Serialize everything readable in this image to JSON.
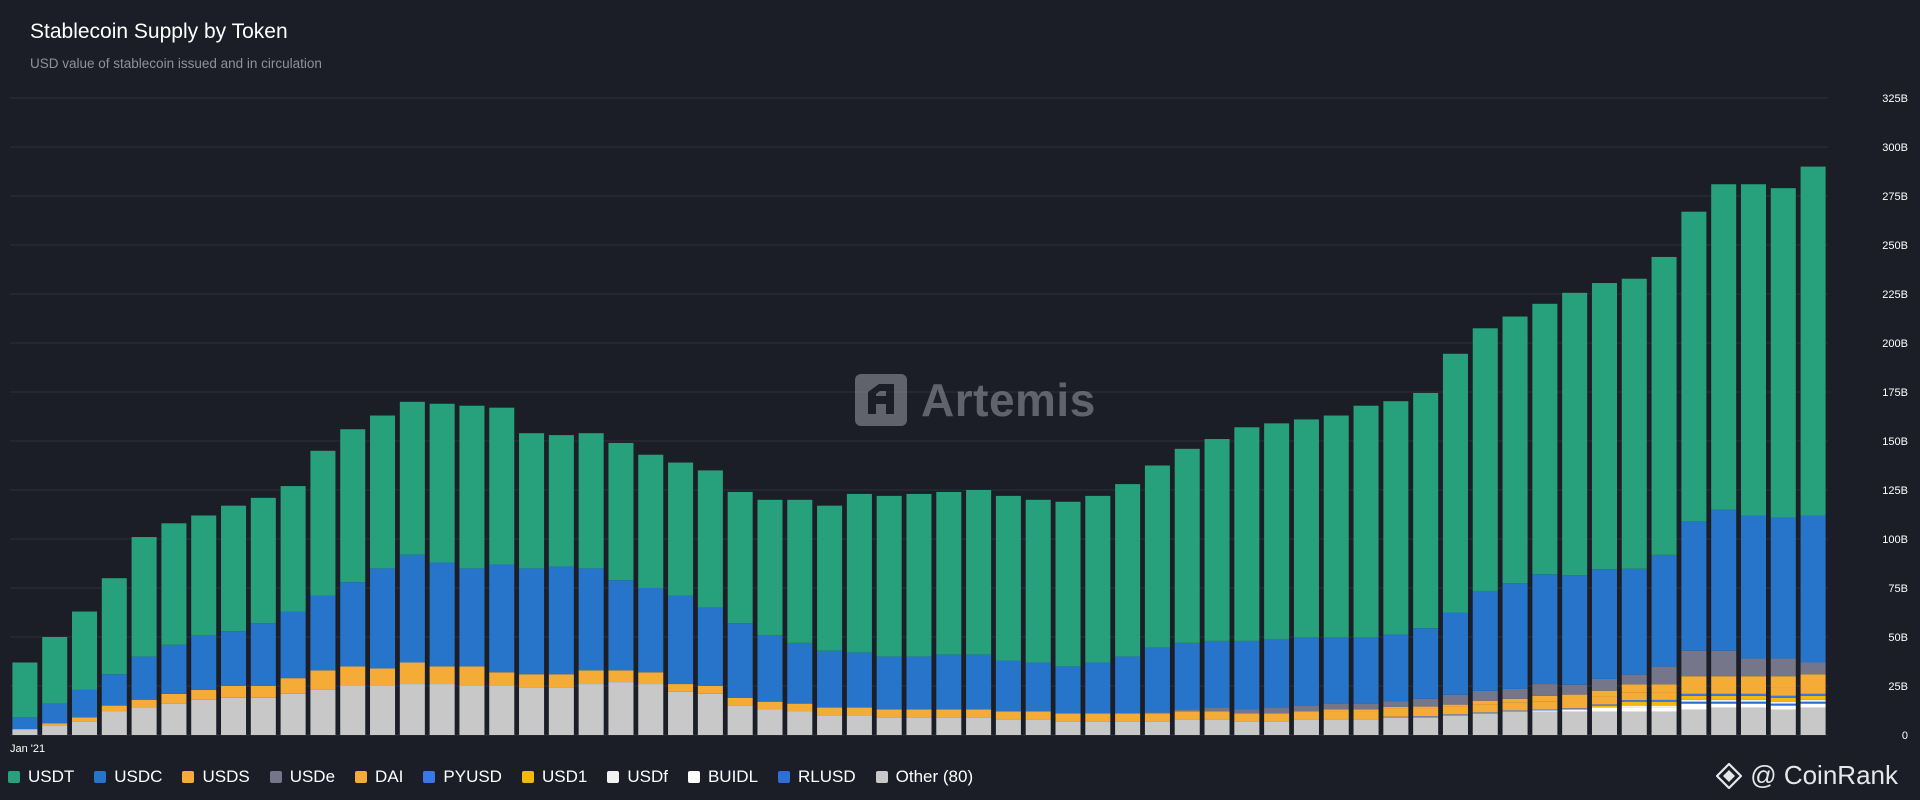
{
  "header": {
    "title": "Stablecoin Supply by Token",
    "subtitle": "USD value of stablecoin issued and in circulation"
  },
  "watermark": {
    "text": "Artemis",
    "icon": "artemis-logo-icon"
  },
  "brand": {
    "text": "@ CoinRank",
    "icon": "coinrank-logo-icon"
  },
  "chart_data": {
    "type": "bar",
    "stacked": true,
    "title": "Stablecoin Supply by Token",
    "subtitle": "USD value of stablecoin issued and in circulation",
    "xlabel": "",
    "ylabel": "",
    "x_tick_labels": [
      "Jan '21"
    ],
    "y_ticks": [
      "0",
      "25B",
      "50B",
      "75B",
      "100B",
      "125B",
      "150B",
      "175B",
      "200B",
      "225B",
      "250B",
      "275B",
      "300B",
      "325B"
    ],
    "ylim": [
      0,
      325
    ],
    "unit": "B USD",
    "grid": true,
    "legend_position": "bottom-left",
    "series": [
      {
        "name": "Other (80)",
        "color": "#c8c8c8",
        "values": [
          3,
          5,
          7,
          12,
          14,
          16,
          18,
          19,
          19,
          21,
          23,
          25,
          25,
          26,
          26,
          25,
          25,
          24,
          24,
          26,
          27,
          26,
          22,
          21,
          15,
          13,
          12,
          10,
          10,
          9,
          9,
          9,
          9,
          8,
          8,
          7,
          7,
          7,
          7,
          8,
          8,
          7,
          7,
          8,
          8,
          8,
          9,
          9,
          10,
          11,
          12,
          12,
          12,
          12,
          12,
          12,
          13,
          14,
          14,
          13,
          14
        ]
      },
      {
        "name": "BUIDL",
        "color": "#ffffff",
        "values": [
          0,
          0,
          0,
          0,
          0,
          0,
          0,
          0,
          0,
          0,
          0,
          0,
          0,
          0,
          0,
          0,
          0,
          0,
          0,
          0,
          0,
          0,
          0,
          0,
          0,
          0,
          0,
          0,
          0,
          0,
          0,
          0,
          0,
          0,
          0,
          0,
          0,
          0,
          0,
          0,
          0,
          0,
          0,
          0,
          0,
          0,
          0,
          0,
          0,
          0,
          0,
          0.5,
          1,
          2,
          2,
          2,
          3,
          2,
          2,
          2,
          2
        ]
      },
      {
        "name": "RLUSD",
        "color": "#2f6ed8",
        "values": [
          0,
          0,
          0,
          0,
          0,
          0,
          0,
          0,
          0,
          0,
          0,
          0,
          0,
          0,
          0,
          0,
          0,
          0,
          0,
          0,
          0,
          0,
          0,
          0,
          0,
          0,
          0,
          0,
          0,
          0,
          0,
          0,
          0,
          0,
          0,
          0,
          0,
          0,
          0,
          0,
          0,
          0,
          0,
          0,
          0,
          0,
          0,
          0,
          0,
          0,
          0,
          0,
          0,
          0,
          0,
          0,
          1,
          1,
          1,
          1,
          1
        ]
      },
      {
        "name": "USDf",
        "color": "#f2f2f2",
        "values": [
          0,
          0,
          0,
          0,
          0,
          0,
          0,
          0,
          0,
          0,
          0,
          0,
          0,
          0,
          0,
          0,
          0,
          0,
          0,
          0,
          0,
          0,
          0,
          0,
          0,
          0,
          0,
          0,
          0,
          0,
          0,
          0,
          0,
          0,
          0,
          0,
          0,
          0,
          0,
          0,
          0,
          0,
          0,
          0,
          0,
          0,
          0,
          0,
          0,
          0,
          0,
          0,
          0,
          0,
          1,
          1,
          1,
          1,
          1,
          1,
          1
        ]
      },
      {
        "name": "USD1",
        "color": "#f0b90b",
        "values": [
          0,
          0,
          0,
          0,
          0,
          0,
          0,
          0,
          0,
          0,
          0,
          0,
          0,
          0,
          0,
          0,
          0,
          0,
          0,
          0,
          0,
          0,
          0,
          0,
          0,
          0,
          0,
          0,
          0,
          0,
          0,
          0,
          0,
          0,
          0,
          0,
          0,
          0,
          0,
          0,
          0,
          0,
          0,
          0,
          0,
          0,
          0,
          0,
          0,
          0,
          0,
          0,
          0,
          1,
          2,
          2,
          2,
          2,
          2,
          2,
          2
        ]
      },
      {
        "name": "PYUSD",
        "color": "#3b78e7",
        "values": [
          0,
          0,
          0,
          0,
          0,
          0,
          0,
          0,
          0,
          0,
          0,
          0,
          0,
          0,
          0,
          0,
          0,
          0,
          0,
          0,
          0,
          0,
          0,
          0,
          0,
          0,
          0,
          0,
          0,
          0,
          0,
          0,
          0,
          0,
          0,
          0,
          0,
          0,
          0,
          0,
          0,
          0,
          0,
          0,
          0,
          0,
          0.3,
          0.5,
          0.5,
          0.5,
          0.5,
          0.5,
          0.6,
          0.6,
          0.8,
          0.9,
          1,
          1,
          1,
          1,
          1
        ]
      },
      {
        "name": "DAI",
        "color": "#f5ac37",
        "values": [
          0,
          1,
          2,
          3,
          4,
          5,
          5,
          6,
          6,
          8,
          10,
          10,
          9,
          11,
          9,
          10,
          7,
          7,
          7,
          7,
          6,
          6,
          4,
          4,
          4,
          4,
          4,
          4,
          4,
          4,
          4,
          4,
          4,
          4,
          4,
          4,
          4,
          4,
          4,
          4,
          4,
          4,
          4,
          4,
          4,
          4,
          4,
          4,
          4,
          4,
          4,
          4,
          4,
          4,
          4,
          4,
          4,
          4,
          4,
          4,
          4
        ]
      },
      {
        "name": "USDS",
        "color": "#f5ac37",
        "values": [
          0,
          0,
          0,
          0,
          0,
          0,
          0,
          0,
          0,
          0,
          0,
          0,
          0,
          0,
          0,
          0,
          0,
          0,
          0,
          0,
          0,
          0,
          0,
          0,
          0,
          0,
          0,
          0,
          0,
          0,
          0,
          0,
          0,
          0,
          0,
          0,
          0,
          0,
          0,
          0,
          0,
          0,
          0,
          0,
          1,
          1,
          1,
          1,
          1,
          2,
          2,
          3,
          3,
          3,
          4,
          4,
          5,
          5,
          5,
          6,
          6
        ]
      },
      {
        "name": "USDe",
        "color": "#75768a",
        "values": [
          0,
          0,
          0,
          0,
          0,
          0,
          0,
          0,
          0,
          0,
          0,
          0,
          0,
          0,
          0,
          0,
          0,
          0,
          0,
          0,
          0,
          0,
          0,
          0,
          0,
          0,
          0,
          0,
          0,
          0,
          0,
          0,
          0,
          0,
          0,
          0,
          0,
          0,
          0.5,
          1,
          2,
          2,
          3,
          3,
          3,
          3,
          3,
          4,
          5,
          5,
          5,
          6,
          5,
          6,
          5,
          9,
          13,
          13,
          9,
          9,
          6
        ]
      },
      {
        "name": "USDC",
        "color": "#2775ca",
        "values": [
          6,
          10,
          14,
          16,
          22,
          25,
          28,
          28,
          32,
          34,
          38,
          43,
          51,
          55,
          53,
          50,
          55,
          54,
          55,
          52,
          46,
          43,
          45,
          40,
          38,
          34,
          31,
          29,
          28,
          27,
          27,
          28,
          28,
          26,
          25,
          24,
          26,
          29,
          33,
          34,
          34,
          35,
          35,
          35,
          34,
          34,
          34,
          36,
          42,
          51,
          54,
          56,
          56,
          56,
          54,
          57,
          66,
          72,
          73,
          72,
          75
        ]
      },
      {
        "name": "USDT",
        "color": "#26a17b",
        "values": [
          28,
          34,
          40,
          49,
          61,
          62,
          61,
          64,
          64,
          64,
          74,
          78,
          78,
          78,
          81,
          83,
          80,
          69,
          67,
          69,
          70,
          68,
          68,
          70,
          67,
          69,
          73,
          74,
          81,
          82,
          83,
          83,
          84,
          84,
          83,
          84,
          85,
          88,
          93,
          99,
          103,
          109,
          110,
          111,
          113,
          118,
          119,
          120,
          132,
          134,
          136,
          138,
          144,
          146,
          148,
          152,
          158,
          166,
          169,
          168,
          178
        ]
      }
    ]
  }
}
